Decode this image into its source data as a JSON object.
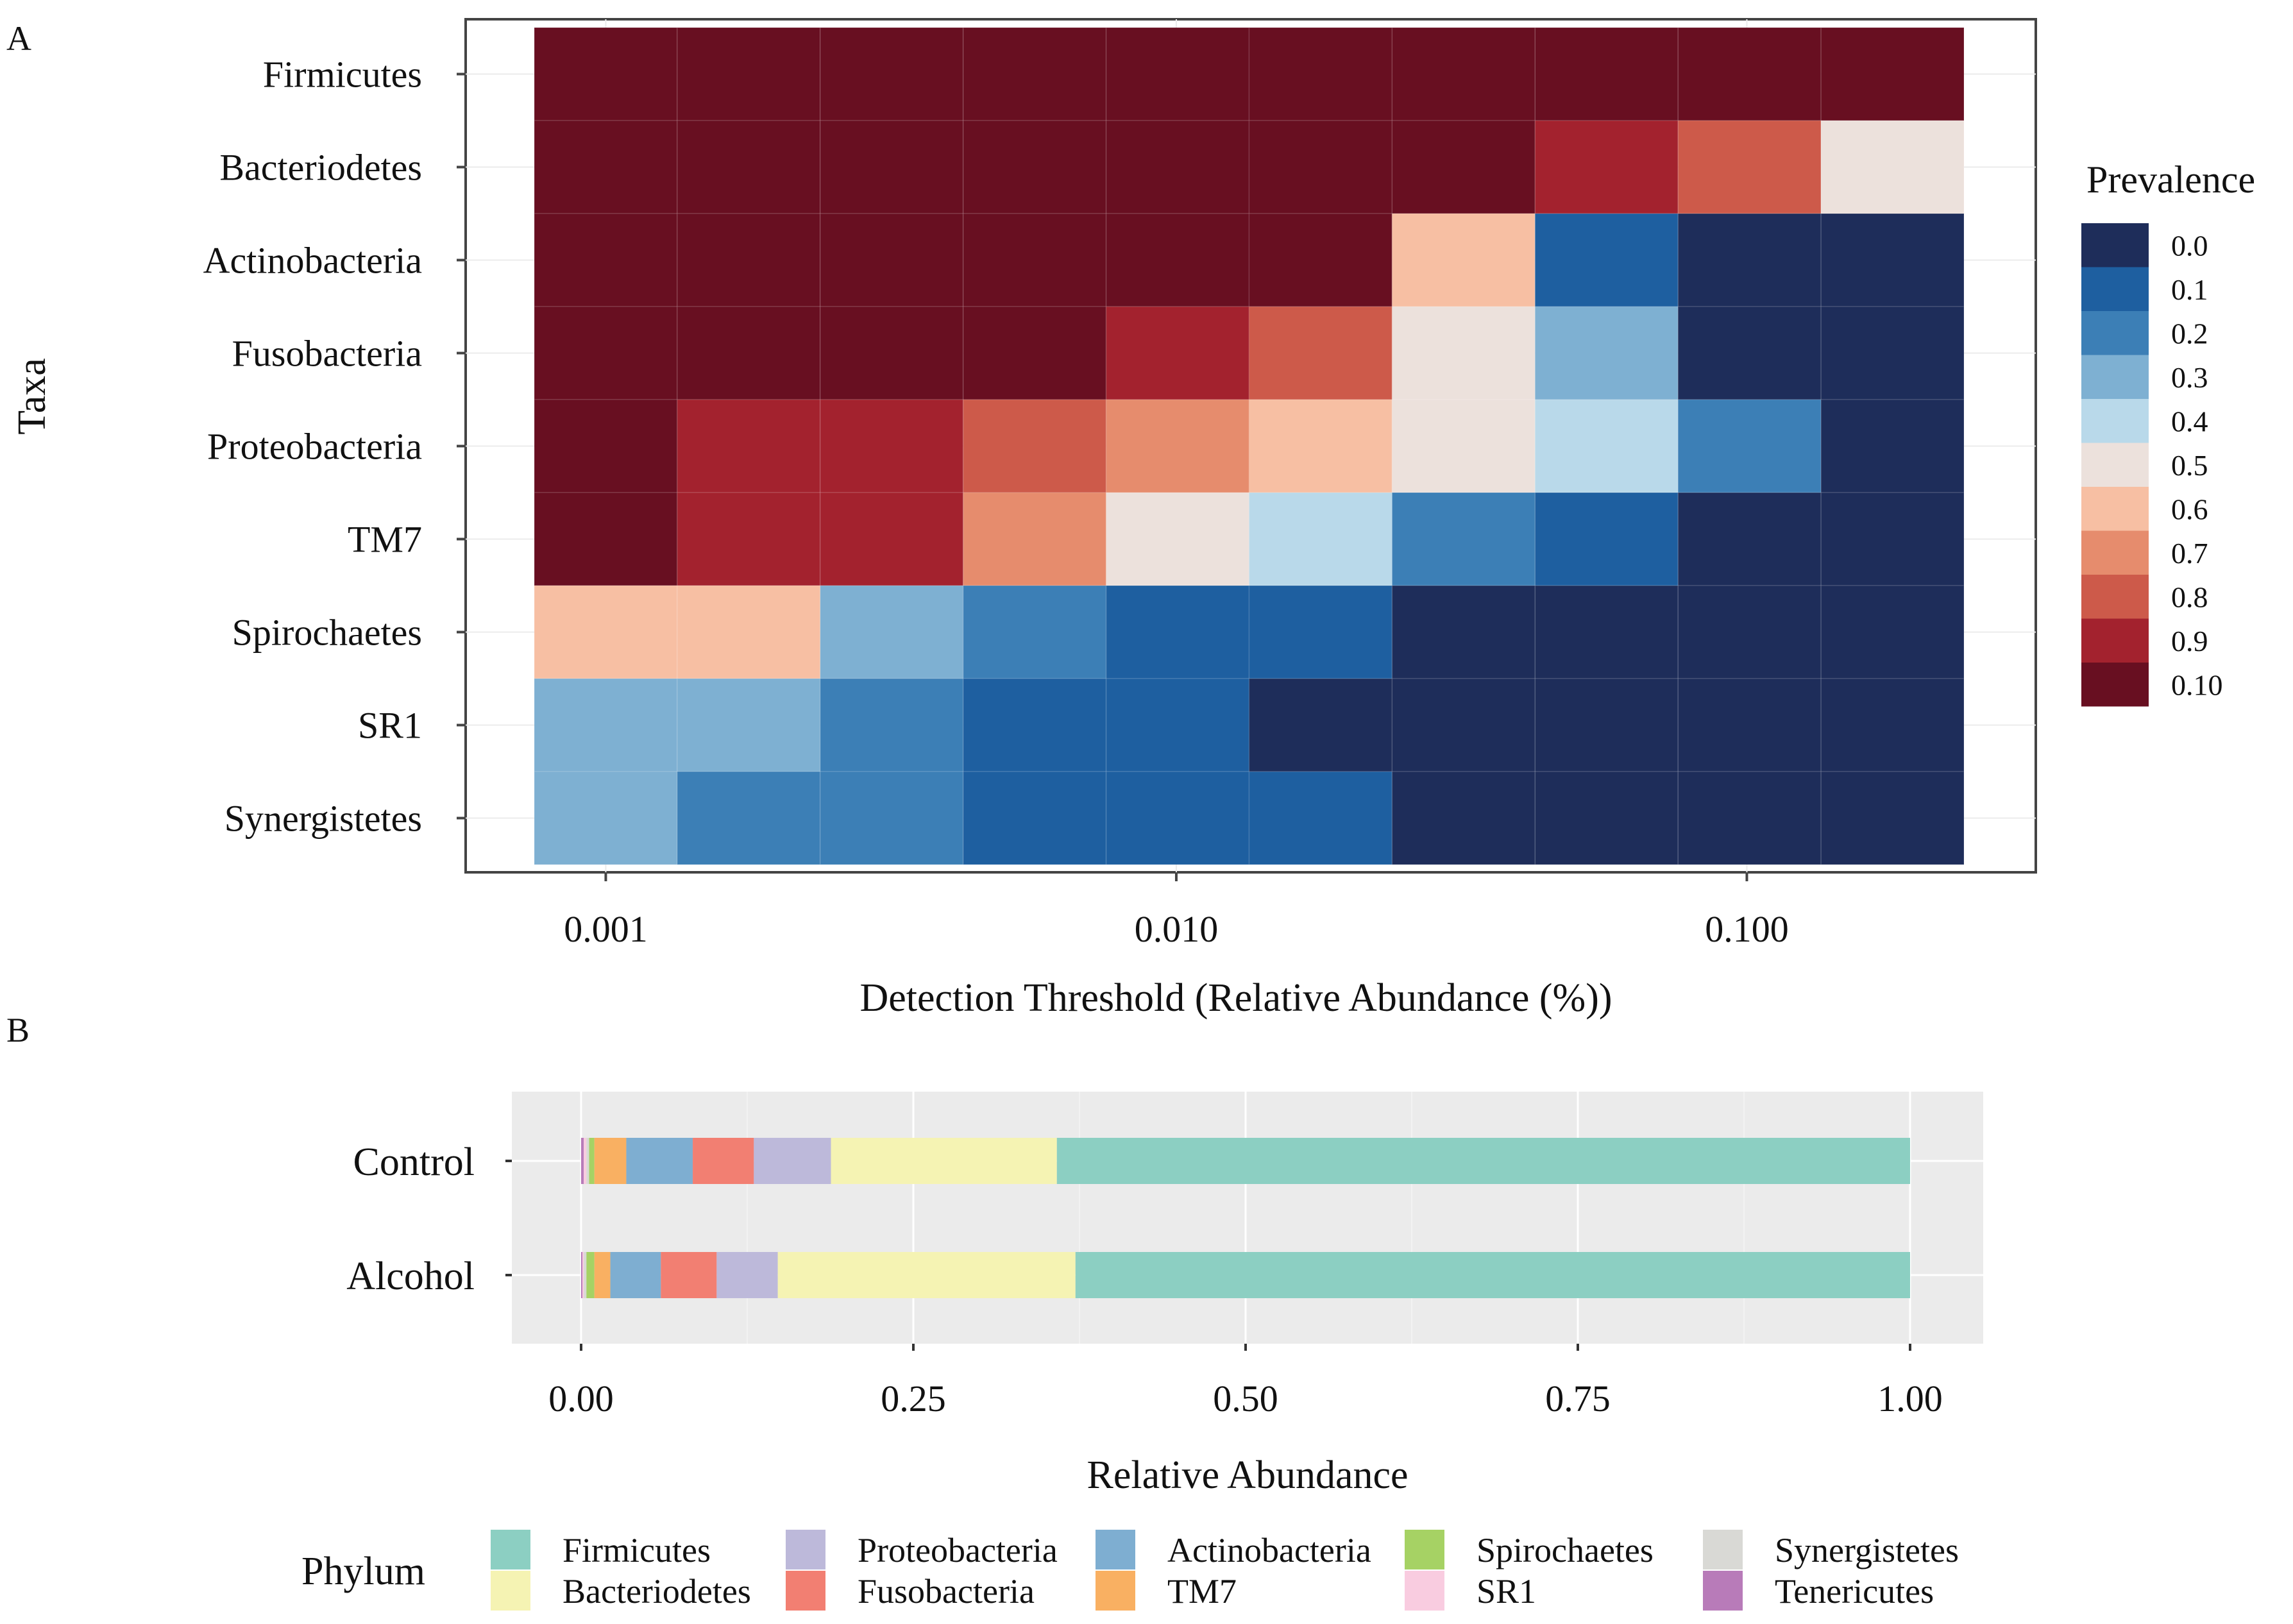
{
  "panels": {
    "a": "A",
    "b": "B"
  },
  "chart_data": [
    {
      "type": "heatmap",
      "panel": "A",
      "title": "",
      "xlabel": "Detection Threshold (Relative Abundance (%))",
      "ylabel": "Taxa",
      "x_scale": "log10",
      "x_ticks": [
        "0.001",
        "0.010",
        "0.100"
      ],
      "x_tick_values": [
        0.001,
        0.01,
        0.1
      ],
      "x_thresholds": [
        0.001,
        0.0018,
        0.0032,
        0.0056,
        0.01,
        0.018,
        0.032,
        0.056,
        0.1,
        0.18
      ],
      "taxa": [
        "Firmicutes",
        "Bacteriodetes",
        "Actinobacteria",
        "Fusobacteria",
        "Proteobacteria",
        "TM7",
        "Spirochaetes",
        "SR1",
        "Synergistetes"
      ],
      "prevalence": [
        [
          1.0,
          1.0,
          1.0,
          1.0,
          1.0,
          1.0,
          1.0,
          1.0,
          1.0,
          1.0
        ],
        [
          1.0,
          1.0,
          1.0,
          1.0,
          1.0,
          1.0,
          1.0,
          0.9,
          0.75,
          0.5
        ],
        [
          1.0,
          1.0,
          1.0,
          1.0,
          1.0,
          0.95,
          0.57,
          0.1,
          0.03,
          0.0
        ],
        [
          1.0,
          0.99,
          0.99,
          0.97,
          0.9,
          0.77,
          0.53,
          0.28,
          0.03,
          0.0
        ],
        [
          0.96,
          0.91,
          0.91,
          0.77,
          0.7,
          0.62,
          0.52,
          0.37,
          0.17,
          0.02
        ],
        [
          0.96,
          0.93,
          0.9,
          0.67,
          0.48,
          0.35,
          0.18,
          0.05,
          0.01,
          0.01
        ],
        [
          0.62,
          0.55,
          0.3,
          0.18,
          0.12,
          0.07,
          0.01,
          0.01,
          0.01,
          0.01
        ],
        [
          0.31,
          0.26,
          0.2,
          0.14,
          0.07,
          0.04,
          0.02,
          0.01,
          0.01,
          0.01
        ],
        [
          0.28,
          0.2,
          0.15,
          0.1,
          0.08,
          0.08,
          0.02,
          0.02,
          0.01,
          0.01
        ]
      ],
      "legend": {
        "title": "Prevalence",
        "labels": [
          "0.0",
          "0.1",
          "0.2",
          "0.3",
          "0.4",
          "0.5",
          "0.6",
          "0.7",
          "0.8",
          "0.9",
          "0.10"
        ],
        "colors": [
          "#1e2d5a",
          "#1e5fa0",
          "#3c7fb6",
          "#7eb0d2",
          "#b9d9ea",
          "#ece1dc",
          "#f7bfa3",
          "#e68c6d",
          "#cd5a4a",
          "#a3222e",
          "#680f21"
        ],
        "position": "right"
      }
    },
    {
      "type": "bar",
      "orientation": "horizontal",
      "stacked": true,
      "panel": "B",
      "xlabel": "Relative Abundance",
      "ylabel": "",
      "categories": [
        "Control",
        "Alcohol"
      ],
      "x_ticks": [
        "0.00",
        "0.25",
        "0.50",
        "0.75",
        "1.00"
      ],
      "xlim": [
        0,
        1
      ],
      "series": [
        {
          "name": "Tenericutes",
          "color": "#b87bb9",
          "values": [
            0.002,
            0.001
          ]
        },
        {
          "name": "SR1",
          "color": "#f9cce0",
          "values": [
            0.002,
            0.001
          ]
        },
        {
          "name": "Synergistetes",
          "color": "#d9d9d5",
          "values": [
            0.002,
            0.002
          ]
        },
        {
          "name": "Spirochaetes",
          "color": "#a6d264",
          "values": [
            0.004,
            0.006
          ]
        },
        {
          "name": "TM7",
          "color": "#f9b062",
          "values": [
            0.024,
            0.012
          ]
        },
        {
          "name": "Actinobacteria",
          "color": "#7eaed1",
          "values": [
            0.05,
            0.038
          ]
        },
        {
          "name": "Fusobacteria",
          "color": "#f27f72",
          "values": [
            0.046,
            0.042
          ]
        },
        {
          "name": "Proteobacteria",
          "color": "#bdb9da",
          "values": [
            0.058,
            0.046
          ]
        },
        {
          "name": "Bacteriodetes",
          "color": "#f5f3b3",
          "values": [
            0.17,
            0.224
          ]
        },
        {
          "name": "Firmicutes",
          "color": "#8ccfc2",
          "values": [
            0.642,
            0.628
          ]
        }
      ],
      "legend": {
        "title": "Phylum",
        "entries": [
          {
            "name": "Firmicutes",
            "color": "#8ccfc2"
          },
          {
            "name": "Bacteriodetes",
            "color": "#f5f3b3"
          },
          {
            "name": "Proteobacteria",
            "color": "#bdb9da"
          },
          {
            "name": "Fusobacteria",
            "color": "#f27f72"
          },
          {
            "name": "Actinobacteria",
            "color": "#7eaed1"
          },
          {
            "name": "TM7",
            "color": "#f9b062"
          },
          {
            "name": "Spirochaetes",
            "color": "#a6d264"
          },
          {
            "name": "SR1",
            "color": "#f9cce0"
          },
          {
            "name": "Synergistetes",
            "color": "#d9d9d5"
          },
          {
            "name": "Tenericutes",
            "color": "#b87bb9"
          }
        ],
        "position": "bottom"
      }
    }
  ]
}
